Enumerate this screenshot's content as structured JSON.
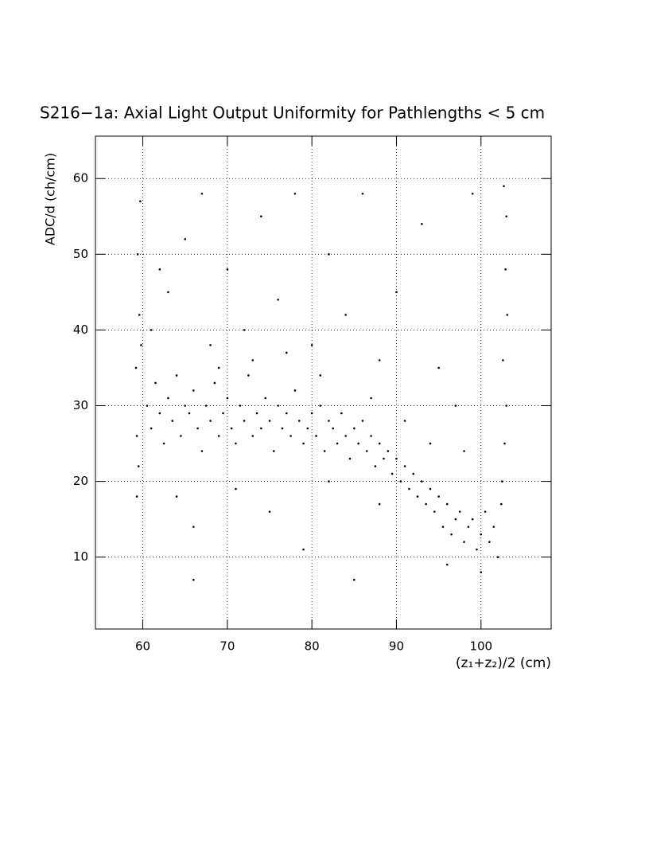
{
  "chart_data": {
    "type": "scatter",
    "title": "S216−1a: Axial Light Output Uniformity for Pathlengths < 5 cm",
    "x_label": "(z₁+z₂)/2 (cm)",
    "y_label": "ADC/d (ch/cm)",
    "xlim": [
      54.4,
      108.3
    ],
    "ylim": [
      0.5,
      65.6
    ],
    "xticks": [
      60,
      70,
      80,
      90,
      100
    ],
    "yticks": [
      10,
      20,
      30,
      40,
      50,
      60
    ],
    "grid": true,
    "color": "#000000",
    "x": [
      60.5,
      61,
      61.5,
      62,
      62.5,
      63,
      63.5,
      64,
      64.5,
      65,
      65.5,
      66,
      66.5,
      67,
      67.5,
      68,
      68.5,
      69,
      69.5,
      70,
      70.5,
      71,
      71.5,
      72,
      72.5,
      73,
      73.5,
      74,
      74.5,
      75,
      75.5,
      76,
      76.5,
      77,
      77.5,
      78,
      78.5,
      79,
      79.5,
      80,
      80.5,
      81,
      81.5,
      82,
      82.5,
      83,
      83.5,
      84,
      84.5,
      85,
      85.5,
      86,
      86.5,
      87,
      87.5,
      88,
      88.5,
      89,
      89.5,
      90,
      90.5,
      91,
      91.5,
      92,
      92.5,
      93,
      93.5,
      94,
      94.5,
      95,
      95.5,
      96,
      96.5,
      97,
      97.5,
      98,
      98.5,
      99,
      99.5,
      100,
      100.5,
      101,
      101.5,
      102,
      59.3,
      59.5,
      59.2,
      59.6,
      59.4,
      59.7,
      59.3,
      59.8,
      102.5,
      102.8,
      103,
      102.6,
      103.1,
      102.9,
      103,
      102.7,
      102.4,
      63,
      65,
      67,
      70,
      72,
      74,
      76,
      78,
      80,
      82,
      84,
      86,
      88,
      90,
      93,
      95,
      97,
      99,
      64,
      66,
      71,
      75,
      79,
      85,
      82,
      68,
      61,
      62,
      69,
      73,
      77,
      81,
      87,
      91,
      94,
      96,
      100,
      98,
      66,
      88
    ],
    "values": [
      30,
      27,
      33,
      29,
      25,
      31,
      28,
      34,
      26,
      30,
      29,
      32,
      27,
      24,
      30,
      28,
      33,
      26,
      29,
      31,
      27,
      25,
      30,
      28,
      34,
      26,
      29,
      27,
      31,
      28,
      24,
      30,
      27,
      29,
      26,
      32,
      28,
      25,
      27,
      29,
      26,
      30,
      24,
      28,
      27,
      25,
      29,
      26,
      23,
      27,
      25,
      28,
      24,
      26,
      22,
      25,
      23,
      24,
      21,
      23,
      20,
      22,
      19,
      21,
      18,
      20,
      17,
      19,
      16,
      18,
      14,
      17,
      13,
      15,
      16,
      12,
      14,
      15,
      11,
      13,
      16,
      12,
      14,
      10,
      18,
      22,
      35,
      42,
      50,
      57,
      26,
      38,
      20,
      25,
      30,
      36,
      42,
      48,
      55,
      59,
      17,
      45,
      52,
      58,
      48,
      40,
      55,
      44,
      58,
      38,
      50,
      42,
      58,
      36,
      45,
      54,
      35,
      30,
      58,
      18,
      14,
      19,
      16,
      11,
      7,
      20,
      38,
      40,
      48,
      35,
      36,
      37,
      34,
      31,
      28,
      25,
      9,
      8,
      24,
      7,
      17
    ]
  }
}
